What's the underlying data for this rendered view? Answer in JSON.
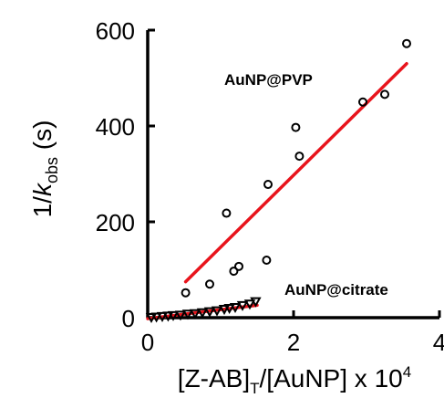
{
  "chart_data": {
    "type": "scatter",
    "title": "",
    "xlabel": {
      "main": "[Z-AB]",
      "sub": "T",
      "rest": "/[AuNP] x 10",
      "sup": "4"
    },
    "ylabel": {
      "main": "1/",
      "italic": "k",
      "sub": "obs",
      "rest": " (s)"
    },
    "xlim": [
      0,
      4
    ],
    "ylim": [
      0,
      600
    ],
    "xticks": [
      "0",
      "2",
      "4"
    ],
    "yticks": [
      "0",
      "200",
      "400",
      "600"
    ],
    "grid": false,
    "legend": "none",
    "series": [
      {
        "name": "AuNP@PVP",
        "marker": "circle",
        "color": "#000000",
        "points": [
          [
            0.52,
            52
          ],
          [
            0.85,
            70
          ],
          [
            1.08,
            218
          ],
          [
            1.18,
            97
          ],
          [
            1.25,
            107
          ],
          [
            1.63,
            120
          ],
          [
            1.65,
            278
          ],
          [
            2.03,
            397
          ],
          [
            2.08,
            337
          ],
          [
            2.95,
            450
          ],
          [
            3.25,
            466
          ],
          [
            3.55,
            572
          ]
        ],
        "fit": {
          "color": "#e8141c",
          "x": [
            0.52,
            3.55
          ],
          "y": [
            75,
            530
          ]
        }
      },
      {
        "name": "AuNP@citrate",
        "marker": "triangle-down",
        "color": "#000000",
        "points": [
          [
            0.05,
            1
          ],
          [
            0.12,
            2
          ],
          [
            0.2,
            3
          ],
          [
            0.28,
            4
          ],
          [
            0.35,
            5
          ],
          [
            0.45,
            6
          ],
          [
            0.55,
            8
          ],
          [
            0.65,
            9
          ],
          [
            0.75,
            11
          ],
          [
            0.85,
            13
          ],
          [
            0.95,
            15
          ],
          [
            1.05,
            18
          ],
          [
            1.12,
            20
          ],
          [
            1.2,
            22
          ],
          [
            1.3,
            26
          ],
          [
            1.4,
            29
          ],
          [
            1.48,
            34
          ]
        ],
        "fit": {
          "color": "#e8141c",
          "x": [
            0.0,
            1.5
          ],
          "y": [
            -2,
            26
          ]
        }
      }
    ],
    "annotations": [
      "AuNP@PVP",
      "AuNP@citrate"
    ]
  }
}
